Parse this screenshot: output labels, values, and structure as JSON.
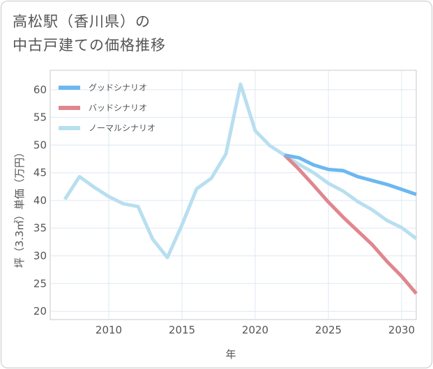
{
  "title": {
    "line1": "高松駅（香川県）の",
    "line2": "中古戸建ての価格推移"
  },
  "chart_data": {
    "type": "line",
    "title": "高松駅（香川県）の中古戸建ての価格推移",
    "xlabel": "年",
    "ylabel": "坪（3.3㎡）単価（万円）",
    "xlim": [
      2006,
      2031
    ],
    "ylim": [
      18.5,
      63.5
    ],
    "x_ticks": [
      2010,
      2015,
      2020,
      2025,
      2030
    ],
    "y_ticks": [
      20,
      25,
      30,
      35,
      40,
      45,
      50,
      55,
      60
    ],
    "grid": true,
    "legend_position": "top-left",
    "series": [
      {
        "name": "グッドシナリオ",
        "color": "#6cb8f0",
        "x": [
          2022,
          2023,
          2024,
          2025,
          2026,
          2027,
          2028,
          2029,
          2030,
          2031
        ],
        "values": [
          48.2,
          47.7,
          46.4,
          45.6,
          45.4,
          44.3,
          43.6,
          42.9,
          42.0,
          41.1
        ]
      },
      {
        "name": "バッドシナリオ",
        "color": "#e0868e",
        "x": [
          2022,
          2023,
          2024,
          2025,
          2026,
          2027,
          2028,
          2029,
          2030,
          2031
        ],
        "values": [
          48.2,
          45.6,
          42.7,
          39.7,
          37.0,
          34.5,
          32.0,
          29.0,
          26.3,
          23.2
        ]
      },
      {
        "name": "ノーマルシナリオ",
        "color": "#b8dff0",
        "x": [
          2007,
          2008,
          2009,
          2010,
          2011,
          2012,
          2013,
          2014,
          2015,
          2016,
          2017,
          2018,
          2019,
          2020,
          2021,
          2022,
          2023,
          2024,
          2025,
          2026,
          2027,
          2028,
          2029,
          2030,
          2031
        ],
        "values": [
          40.2,
          44.3,
          42.4,
          40.7,
          39.4,
          38.9,
          33.0,
          29.7,
          35.6,
          42.1,
          44.0,
          48.4,
          61.0,
          52.6,
          49.9,
          48.2,
          46.5,
          45.0,
          43.1,
          41.7,
          39.8,
          38.3,
          36.4,
          35.1,
          33.1
        ]
      }
    ]
  }
}
